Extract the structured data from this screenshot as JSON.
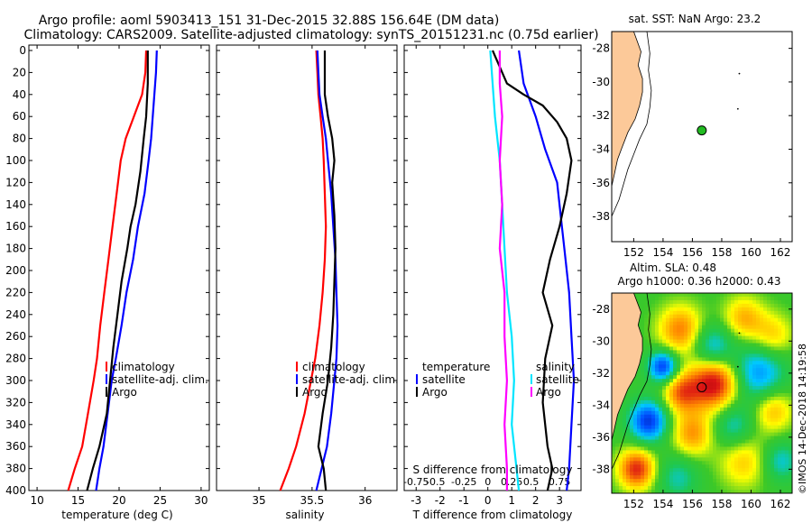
{
  "title": {
    "line1": "Argo profile: aoml 5903413_151 31-Dec-2015 32.88S 156.64E (DM data)",
    "line2": "Climatology: CARS2009. Satellite-adjusted climatology: synTS_20151231.nc (0.75d earlier)"
  },
  "colors": {
    "climatology": "#ff0000",
    "satellite": "#0000ff",
    "argo": "#000000",
    "sat_sal": "#00e5ff",
    "magenta": "#ff00ff",
    "land": "#fcc999",
    "float": "#22bb22"
  },
  "chart_data": [
    {
      "type": "line",
      "name": "temperature",
      "xlabel": "temperature (deg C)",
      "xlim": [
        9,
        31
      ],
      "ylim": [
        400,
        0
      ],
      "xticks": [
        10,
        15,
        20,
        25,
        30
      ],
      "yticks": [
        0,
        20,
        40,
        60,
        80,
        100,
        120,
        140,
        160,
        180,
        200,
        220,
        240,
        260,
        280,
        300,
        320,
        340,
        360,
        380,
        400
      ],
      "legend": [
        "climatology",
        "satellite-adj. clim.",
        "Argo"
      ],
      "series": [
        {
          "name": "climatology",
          "color": "#ff0000",
          "points": [
            [
              23.3,
              0
            ],
            [
              23.2,
              20
            ],
            [
              22.8,
              40
            ],
            [
              21.8,
              60
            ],
            [
              20.8,
              80
            ],
            [
              20.2,
              100
            ],
            [
              19.7,
              130
            ],
            [
              19.2,
              160
            ],
            [
              18.7,
              190
            ],
            [
              18.2,
              220
            ],
            [
              17.7,
              250
            ],
            [
              17.3,
              280
            ],
            [
              16.9,
              300
            ],
            [
              16.2,
              330
            ],
            [
              15.5,
              360
            ],
            [
              14.6,
              380
            ],
            [
              13.8,
              400
            ]
          ]
        },
        {
          "name": "satellite-adj. clim.",
          "color": "#0000ff",
          "points": [
            [
              24.6,
              0
            ],
            [
              24.5,
              20
            ],
            [
              24.3,
              40
            ],
            [
              24.1,
              60
            ],
            [
              23.9,
              80
            ],
            [
              23.6,
              100
            ],
            [
              23.1,
              130
            ],
            [
              22.3,
              160
            ],
            [
              21.7,
              190
            ],
            [
              20.9,
              220
            ],
            [
              20.3,
              250
            ],
            [
              19.6,
              280
            ],
            [
              19.1,
              300
            ],
            [
              18.6,
              330
            ],
            [
              18.1,
              360
            ],
            [
              17.6,
              380
            ],
            [
              17.2,
              400
            ]
          ]
        },
        {
          "name": "Argo",
          "color": "#000000",
          "points": [
            [
              23.5,
              0
            ],
            [
              23.5,
              30
            ],
            [
              23.3,
              60
            ],
            [
              23.0,
              80
            ],
            [
              22.6,
              110
            ],
            [
              22.0,
              140
            ],
            [
              21.4,
              160
            ],
            [
              21.0,
              180
            ],
            [
              20.3,
              210
            ],
            [
              19.8,
              240
            ],
            [
              19.3,
              270
            ],
            [
              18.9,
              300
            ],
            [
              18.5,
              330
            ],
            [
              17.6,
              360
            ],
            [
              16.8,
              380
            ],
            [
              16.1,
              400
            ]
          ]
        }
      ]
    },
    {
      "type": "line",
      "name": "salinity",
      "xlabel": "salinity",
      "xlim": [
        34.6,
        36.3
      ],
      "ylim": [
        400,
        0
      ],
      "xticks": [
        35,
        35.5,
        36
      ],
      "legend": [
        "climatology",
        "satellite-adj. clim.",
        "Argo"
      ],
      "series": [
        {
          "name": "climatology",
          "color": "#ff0000",
          "points": [
            [
              35.54,
              0
            ],
            [
              35.55,
              20
            ],
            [
              35.56,
              40
            ],
            [
              35.58,
              60
            ],
            [
              35.6,
              80
            ],
            [
              35.61,
              100
            ],
            [
              35.62,
              130
            ],
            [
              35.63,
              160
            ],
            [
              35.62,
              190
            ],
            [
              35.6,
              220
            ],
            [
              35.57,
              250
            ],
            [
              35.53,
              280
            ],
            [
              35.49,
              300
            ],
            [
              35.43,
              330
            ],
            [
              35.35,
              360
            ],
            [
              35.28,
              380
            ],
            [
              35.2,
              400
            ]
          ]
        },
        {
          "name": "satellite-adj. clim.",
          "color": "#0000ff",
          "points": [
            [
              35.55,
              0
            ],
            [
              35.56,
              20
            ],
            [
              35.57,
              40
            ],
            [
              35.6,
              60
            ],
            [
              35.63,
              80
            ],
            [
              35.65,
              100
            ],
            [
              35.68,
              130
            ],
            [
              35.7,
              160
            ],
            [
              35.72,
              190
            ],
            [
              35.73,
              220
            ],
            [
              35.74,
              250
            ],
            [
              35.73,
              280
            ],
            [
              35.71,
              300
            ],
            [
              35.68,
              330
            ],
            [
              35.64,
              360
            ],
            [
              35.59,
              380
            ],
            [
              35.54,
              400
            ]
          ]
        },
        {
          "name": "Argo",
          "color": "#000000",
          "points": [
            [
              35.62,
              0
            ],
            [
              35.62,
              40
            ],
            [
              35.65,
              60
            ],
            [
              35.69,
              80
            ],
            [
              35.71,
              100
            ],
            [
              35.69,
              120
            ],
            [
              35.71,
              150
            ],
            [
              35.72,
              180
            ],
            [
              35.71,
              210
            ],
            [
              35.7,
              240
            ],
            [
              35.68,
              270
            ],
            [
              35.65,
              300
            ],
            [
              35.6,
              330
            ],
            [
              35.56,
              360
            ],
            [
              35.61,
              380
            ],
            [
              35.63,
              400
            ]
          ]
        }
      ]
    },
    {
      "type": "line",
      "name": "difference",
      "xlabel": "T difference from climatology",
      "xlabel_top": "S difference from climatology",
      "xlim": [
        -3.5,
        3.9
      ],
      "ylim": [
        400,
        0
      ],
      "xticks": [
        -3,
        -2,
        -1,
        0,
        1,
        2,
        3
      ],
      "s_tick_labels": [
        "-0.75",
        "-0.5",
        "-0.25",
        "0",
        "0.25",
        "0.5",
        "0.75"
      ],
      "legend_temperature": {
        "title": "temperature",
        "items": [
          "satellite",
          "Argo"
        ]
      },
      "legend_salinity": {
        "title": "salinity",
        "items": [
          "satellite",
          "Argo"
        ]
      },
      "series": [
        {
          "name": "T satellite",
          "color": "#0000ff",
          "points": [
            [
              1.3,
              0
            ],
            [
              1.5,
              30
            ],
            [
              2.0,
              60
            ],
            [
              2.4,
              90
            ],
            [
              2.9,
              120
            ],
            [
              3.1,
              160
            ],
            [
              3.2,
              180
            ],
            [
              3.4,
              220
            ],
            [
              3.5,
              260
            ],
            [
              3.6,
              300
            ],
            [
              3.5,
              340
            ],
            [
              3.4,
              380
            ],
            [
              3.3,
              400
            ]
          ]
        },
        {
          "name": "T Argo",
          "color": "#000000",
          "points": [
            [
              0.2,
              0
            ],
            [
              0.4,
              10
            ],
            [
              0.8,
              30
            ],
            [
              1.5,
              40
            ],
            [
              2.3,
              50
            ],
            [
              2.9,
              65
            ],
            [
              3.3,
              80
            ],
            [
              3.5,
              100
            ],
            [
              3.3,
              130
            ],
            [
              3.0,
              160
            ],
            [
              2.6,
              190
            ],
            [
              2.3,
              220
            ],
            [
              2.7,
              250
            ],
            [
              2.4,
              280
            ],
            [
              2.3,
              320
            ],
            [
              2.5,
              360
            ],
            [
              2.7,
              380
            ],
            [
              2.5,
              400
            ]
          ]
        },
        {
          "name": "S satellite",
          "color": "#00e5ff",
          "points": [
            [
              0.1,
              0
            ],
            [
              0.2,
              30
            ],
            [
              0.3,
              60
            ],
            [
              0.5,
              100
            ],
            [
              0.6,
              140
            ],
            [
              0.7,
              180
            ],
            [
              0.8,
              220
            ],
            [
              1.0,
              260
            ],
            [
              1.1,
              300
            ],
            [
              1.0,
              340
            ],
            [
              1.2,
              380
            ],
            [
              1.3,
              400
            ]
          ]
        },
        {
          "name": "S Argo",
          "color": "#ff00ff",
          "points": [
            [
              0.5,
              0
            ],
            [
              0.5,
              30
            ],
            [
              0.6,
              60
            ],
            [
              0.5,
              100
            ],
            [
              0.6,
              140
            ],
            [
              0.5,
              180
            ],
            [
              0.7,
              220
            ],
            [
              0.7,
              260
            ],
            [
              0.8,
              300
            ],
            [
              0.7,
              340
            ],
            [
              0.8,
              380
            ],
            [
              0.8,
              400
            ]
          ]
        }
      ]
    },
    {
      "type": "map",
      "name": "sst-map",
      "title": "sat. SST: NaN Argo: 23.2",
      "xlim": [
        150.5,
        162.8
      ],
      "ylim": [
        -39.5,
        -27
      ],
      "xticks": [
        152,
        154,
        156,
        158,
        160,
        162
      ],
      "yticks": [
        -28,
        -30,
        -32,
        -34,
        -36,
        -38
      ],
      "argo_position": [
        156.64,
        -32.88
      ]
    },
    {
      "type": "heatmap",
      "name": "sla-map",
      "title_line1": "Altim. SLA: 0.48",
      "title_line2": "Argo h1000: 0.36 h2000: 0.43",
      "xlim": [
        150.5,
        162.8
      ],
      "ylim": [
        -39.5,
        -27
      ],
      "xticks": [
        152,
        154,
        156,
        158,
        160,
        162
      ],
      "yticks": [
        -28,
        -30,
        -32,
        -34,
        -36,
        -38
      ],
      "argo_position": [
        156.64,
        -32.88
      ],
      "blobs": [
        {
          "lon": 155.2,
          "lat": -29.3,
          "r": 1.1,
          "v": 0.9
        },
        {
          "lon": 157.4,
          "lat": -30.4,
          "r": 1.0,
          "v": -0.8
        },
        {
          "lon": 159.5,
          "lat": -28.6,
          "r": 1.0,
          "v": 0.7
        },
        {
          "lon": 161.5,
          "lat": -29.7,
          "r": 1.0,
          "v": 0.6
        },
        {
          "lon": 154.0,
          "lat": -31.6,
          "r": 0.7,
          "v": -1.3
        },
        {
          "lon": 157.5,
          "lat": -32.6,
          "r": 1.2,
          "v": 1.4
        },
        {
          "lon": 155.2,
          "lat": -33.2,
          "r": 0.9,
          "v": 0.9
        },
        {
          "lon": 160.5,
          "lat": -32.0,
          "r": 1.3,
          "v": -0.9
        },
        {
          "lon": 153.0,
          "lat": -35.0,
          "r": 0.9,
          "v": -1.3
        },
        {
          "lon": 156.0,
          "lat": -35.8,
          "r": 1.0,
          "v": 0.8
        },
        {
          "lon": 158.8,
          "lat": -35.3,
          "r": 1.0,
          "v": -0.6
        },
        {
          "lon": 161.5,
          "lat": -34.3,
          "r": 1.0,
          "v": 0.7
        },
        {
          "lon": 159.5,
          "lat": -37.5,
          "r": 1.2,
          "v": 0.6
        },
        {
          "lon": 152.2,
          "lat": -38.0,
          "r": 0.9,
          "v": 1.2
        },
        {
          "lon": 155.0,
          "lat": -38.5,
          "r": 1.0,
          "v": -0.5
        },
        {
          "lon": 162.0,
          "lat": -37.5,
          "r": 0.9,
          "v": -0.6
        }
      ]
    }
  ],
  "watermark": "©IMOS 14-Dec-2018 14:19:58"
}
